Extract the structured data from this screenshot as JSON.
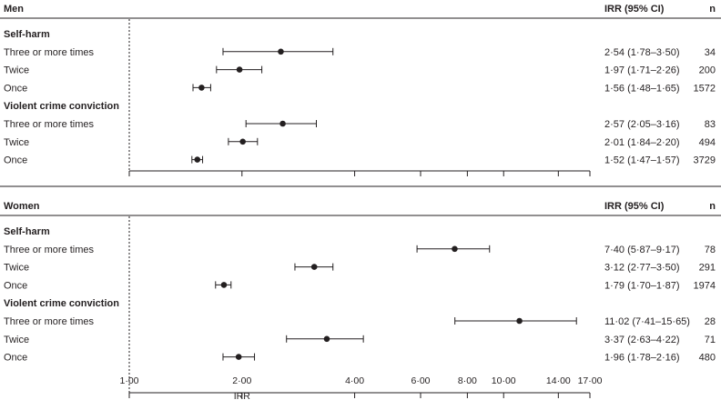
{
  "axis_label": "IRR",
  "colors": {
    "ink": "#231f20",
    "background": "#ffffff"
  },
  "chart_data": {
    "type": "forest",
    "xscale": "log",
    "xlim": [
      1.0,
      17.0
    ],
    "reference_line": 1.0,
    "xlabel": "IRR",
    "xticks": [
      {
        "value": 1,
        "label": "1·00"
      },
      {
        "value": 2,
        "label": "2·00"
      },
      {
        "value": 4,
        "label": "4·00"
      },
      {
        "value": 6,
        "label": "6·00"
      },
      {
        "value": 8,
        "label": "8·00"
      },
      {
        "value": 10,
        "label": "10·00"
      },
      {
        "value": 14,
        "label": "14·00"
      },
      {
        "value": 17,
        "label": "17·00"
      }
    ],
    "panels": [
      {
        "title": "Men",
        "col_irr": "IRR (95% CI)",
        "col_n": "n",
        "groups": [
          {
            "name": "Self-harm",
            "rows": [
              {
                "label": "Three or more times",
                "irr": 2.54,
                "lo": 1.78,
                "hi": 3.5,
                "irr_text": "2·54 (1·78–3·50)",
                "n": "34"
              },
              {
                "label": "Twice",
                "irr": 1.97,
                "lo": 1.71,
                "hi": 2.26,
                "irr_text": "1·97 (1·71–2·26)",
                "n": "200"
              },
              {
                "label": "Once",
                "irr": 1.56,
                "lo": 1.48,
                "hi": 1.65,
                "irr_text": "1·56 (1·48–1·65)",
                "n": "1572"
              }
            ]
          },
          {
            "name": "Violent crime conviction",
            "rows": [
              {
                "label": "Three or more times",
                "irr": 2.57,
                "lo": 2.05,
                "hi": 3.16,
                "irr_text": "2·57 (2·05–3·16)",
                "n": "83"
              },
              {
                "label": "Twice",
                "irr": 2.01,
                "lo": 1.84,
                "hi": 2.2,
                "irr_text": "2·01 (1·84–2·20)",
                "n": "494"
              },
              {
                "label": "Once",
                "irr": 1.52,
                "lo": 1.47,
                "hi": 1.57,
                "irr_text": "1·52 (1·47–1·57)",
                "n": "3729"
              }
            ]
          }
        ]
      },
      {
        "title": "Women",
        "col_irr": "IRR (95% CI)",
        "col_n": "n",
        "groups": [
          {
            "name": "Self-harm",
            "rows": [
              {
                "label": "Three or more times",
                "irr": 7.4,
                "lo": 5.87,
                "hi": 9.17,
                "irr_text": "7·40 (5·87–9·17)",
                "n": "78"
              },
              {
                "label": "Twice",
                "irr": 3.12,
                "lo": 2.77,
                "hi": 3.5,
                "irr_text": "3·12 (2·77–3·50)",
                "n": "291"
              },
              {
                "label": "Once",
                "irr": 1.79,
                "lo": 1.7,
                "hi": 1.87,
                "irr_text": "1·79 (1·70–1·87)",
                "n": "1974"
              }
            ]
          },
          {
            "name": "Violent crime conviction",
            "rows": [
              {
                "label": "Three or more times",
                "irr": 11.02,
                "lo": 7.41,
                "hi": 15.65,
                "irr_text": "11·02 (7·41–15·65)",
                "n": "28"
              },
              {
                "label": "Twice",
                "irr": 3.37,
                "lo": 2.63,
                "hi": 4.22,
                "irr_text": "3·37 (2·63–4·22)",
                "n": "71"
              },
              {
                "label": "Once",
                "irr": 1.96,
                "lo": 1.78,
                "hi": 2.16,
                "irr_text": "1·96 (1·78–2·16)",
                "n": "480"
              }
            ]
          }
        ]
      }
    ]
  }
}
